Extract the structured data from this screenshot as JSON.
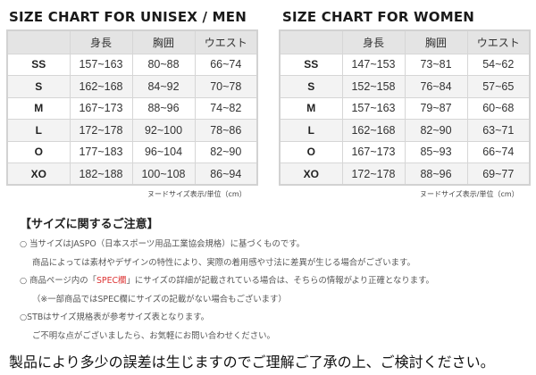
{
  "men": {
    "title": "SIZE CHART FOR UNISEX / MEN",
    "headers": [
      "",
      "身長",
      "胸囲",
      "ウエスト"
    ],
    "rows": [
      [
        "SS",
        "157~163",
        "80~88",
        "66~74"
      ],
      [
        "S",
        "162~168",
        "84~92",
        "70~78"
      ],
      [
        "M",
        "167~173",
        "88~96",
        "74~82"
      ],
      [
        "L",
        "172~178",
        "92~100",
        "78~86"
      ],
      [
        "O",
        "177~183",
        "96~104",
        "82~90"
      ],
      [
        "XO",
        "182~188",
        "100~108",
        "86~94"
      ]
    ],
    "unit_note": "ヌードサイズ表示/単位（cm）"
  },
  "women": {
    "title": "SIZE CHART FOR WOMEN",
    "headers": [
      "",
      "身長",
      "胸囲",
      "ウエスト"
    ],
    "rows": [
      [
        "SS",
        "147~153",
        "73~81",
        "54~62"
      ],
      [
        "S",
        "152~158",
        "76~84",
        "57~65"
      ],
      [
        "M",
        "157~163",
        "79~87",
        "60~68"
      ],
      [
        "L",
        "162~168",
        "82~90",
        "63~71"
      ],
      [
        "O",
        "167~173",
        "85~93",
        "66~74"
      ],
      [
        "XO",
        "172~178",
        "88~96",
        "69~77"
      ]
    ],
    "unit_note": "ヌードサイズ表示/単位（cm）"
  },
  "notes": {
    "title": "【サイズに関するご注意】",
    "line1": "○ 当サイズはJASPO（日本スポーツ用品工業協会規格）に基づくものです。",
    "line2": "商品によっては素材やデザインの特性により、実際の着用感や寸法に差異が生じる場合がございます。",
    "line3_pre": "○ 商品ページ内の「",
    "line3_red": "SPEC欄",
    "line3_post": "」にサイズの詳細が記載されている場合は、そちらの情報がより正確となります。",
    "line4": "（※一部商品ではSPEC欄にサイズの記載がない場合もございます）",
    "line5": "○STBはサイズ規格表が参考サイズ表となります。",
    "line6": "ご不明な点がございましたら、お気軽にお問い合わせください。"
  },
  "footer": "製品により多少の誤差は生じますのでご理解ご了承の上、ご検討ください。",
  "colors": {
    "header_bg": "#e4e4e4",
    "border": "#d6d6d6",
    "spec_red": "#dd3333"
  }
}
